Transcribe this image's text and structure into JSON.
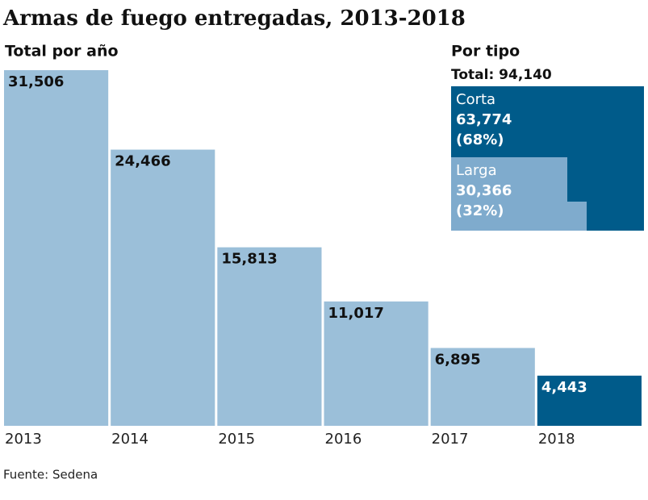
{
  "chart_data": {
    "type": "bar",
    "title": "Armas de fuego entregadas, 2013-2018",
    "subtitle": "Total por año",
    "categories": [
      "2013",
      "2014",
      "2015",
      "2016",
      "2017",
      "2018"
    ],
    "values": [
      31506,
      24466,
      15813,
      11017,
      6895,
      4443
    ],
    "value_labels": [
      "31,506",
      "24,466",
      "15,813",
      "11,017",
      "6,895",
      "4,443"
    ],
    "colors": [
      "#9bbfd9",
      "#9bbfd9",
      "#9bbfd9",
      "#9bbfd9",
      "#9bbfd9",
      "#005b8a"
    ]
  },
  "inset": {
    "title": "Por tipo",
    "total_label": "Total: 94,140",
    "segments": [
      {
        "name": "Corta",
        "value": 63774,
        "value_label": "63,774",
        "percent": 68,
        "percent_label": "(68%)",
        "color": "#005b8a"
      },
      {
        "name": "Larga",
        "value": 30366,
        "value_label": "30,366",
        "percent": 32,
        "percent_label": "(32%)",
        "color": "#7fabcd"
      }
    ]
  },
  "source": "Fuente: Sedena"
}
